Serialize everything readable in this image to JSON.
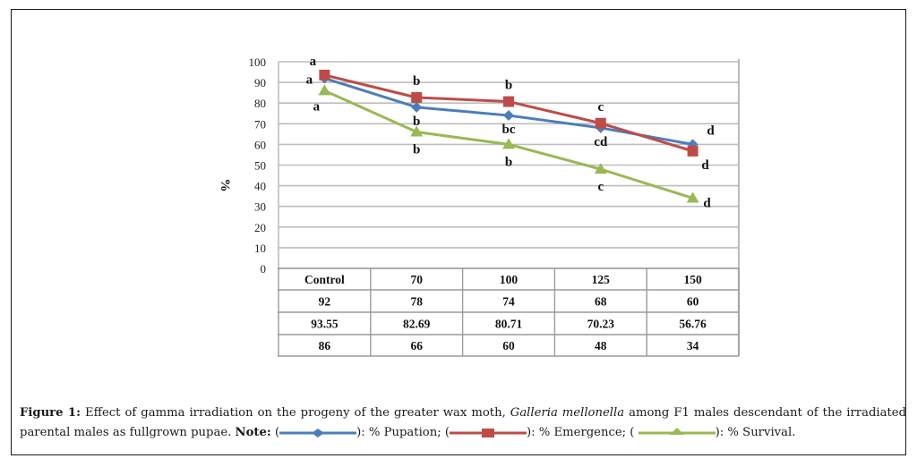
{
  "chart_data": {
    "type": "line",
    "title": "",
    "xlabel": "",
    "ylabel": "%",
    "ylim": [
      0,
      100
    ],
    "yticks": [
      0,
      10,
      20,
      30,
      40,
      50,
      60,
      70,
      80,
      90,
      100
    ],
    "grid": true,
    "categories": [
      "Control",
      "70",
      "100",
      "125",
      "150"
    ],
    "series": [
      {
        "name": "% Pupation",
        "color": "#4a7ebb",
        "marker": "diamond",
        "values": [
          92,
          78,
          74,
          68,
          60
        ],
        "significance": [
          "a",
          "b",
          "bc",
          "cd",
          "d"
        ],
        "label_position": [
          "left",
          "below",
          "below",
          "below",
          "above"
        ]
      },
      {
        "name": "% Emergence",
        "color": "#be4b48",
        "marker": "square",
        "values": [
          93.55,
          82.69,
          80.71,
          70.23,
          56.76
        ],
        "significance": [
          "a",
          "b",
          "b",
          "c",
          "d"
        ],
        "label_position": [
          "above-left",
          "above",
          "above",
          "above",
          "below-right"
        ]
      },
      {
        "name": "% Survival",
        "color": "#98b954",
        "marker": "triangle",
        "values": [
          86,
          66,
          60,
          48,
          34
        ],
        "significance": [
          "a",
          "b",
          "b",
          "c",
          "d"
        ],
        "label_position": [
          "below",
          "below",
          "below",
          "below",
          "right"
        ]
      }
    ],
    "data_table": {
      "header": [
        "Control",
        "70",
        "100",
        "125",
        "150"
      ],
      "rows": [
        [
          "92",
          "78",
          "74",
          "68",
          "60"
        ],
        [
          "93.55",
          "82.69",
          "80.71",
          "70.23",
          "56.76"
        ],
        [
          "86",
          "66",
          "60",
          "48",
          "34"
        ]
      ]
    },
    "legend": "caption"
  },
  "caption": {
    "label": "Figure 1:",
    "text_before_species": " Effect of gamma irradiation on the progeny of the greater wax moth, ",
    "species": "Galleria mellonella",
    "text_after_species": " among F1 males descendant of the irradiated parental males as fullgrown pupae. ",
    "note_label": "Note:",
    "legend_items": [
      {
        "text": "): % Pupation; (",
        "series": "% Pupation"
      },
      {
        "text": "): % Emergence; (",
        "series": "% Emergence"
      },
      {
        "text": "): % Survival.",
        "series": "% Survival"
      }
    ]
  }
}
